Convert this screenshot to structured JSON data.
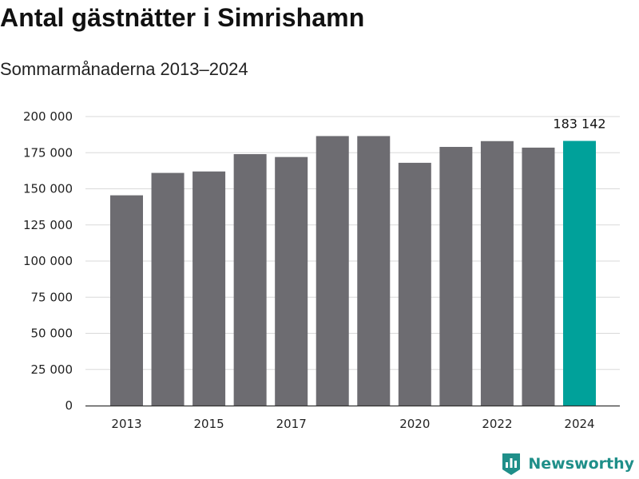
{
  "title": "Antal gästnätter i Simrishamn",
  "subtitle": "Sommarmånaderna 2013–2024",
  "brand": {
    "name": "Newsworthy",
    "icon": "bar-chart-logo-icon",
    "color": "#1f8f89"
  },
  "colors": {
    "bar": "#6d6c71",
    "highlight": "#00a19a",
    "grid": "#d9d9d9",
    "axis": "#333333"
  },
  "chart_data": {
    "type": "bar",
    "categories": [
      "2013",
      "2014",
      "2015",
      "2016",
      "2017",
      "2018",
      "2019",
      "2020",
      "2021",
      "2022",
      "2023",
      "2024"
    ],
    "values": [
      145500,
      161000,
      162000,
      174000,
      172000,
      186500,
      186500,
      168000,
      179000,
      183000,
      178500,
      183142
    ],
    "highlight_index": 11,
    "data_labels": [
      {
        "index": 11,
        "text": "183 142"
      }
    ],
    "ylim": [
      0,
      200000
    ],
    "yticks": [
      {
        "value": 0,
        "label": "0"
      },
      {
        "value": 25000,
        "label": "25 000"
      },
      {
        "value": 50000,
        "label": "50 000"
      },
      {
        "value": 75000,
        "label": "75 000"
      },
      {
        "value": 100000,
        "label": "100 000"
      },
      {
        "value": 125000,
        "label": "125 000"
      },
      {
        "value": 150000,
        "label": "150 000"
      },
      {
        "value": 175000,
        "label": "175 000"
      },
      {
        "value": 200000,
        "label": "200 000"
      }
    ],
    "xtick_labels": [
      "2013",
      "2015",
      "2017",
      "2020",
      "2022",
      "2024"
    ],
    "grid": true,
    "xlabel": "",
    "ylabel": ""
  }
}
